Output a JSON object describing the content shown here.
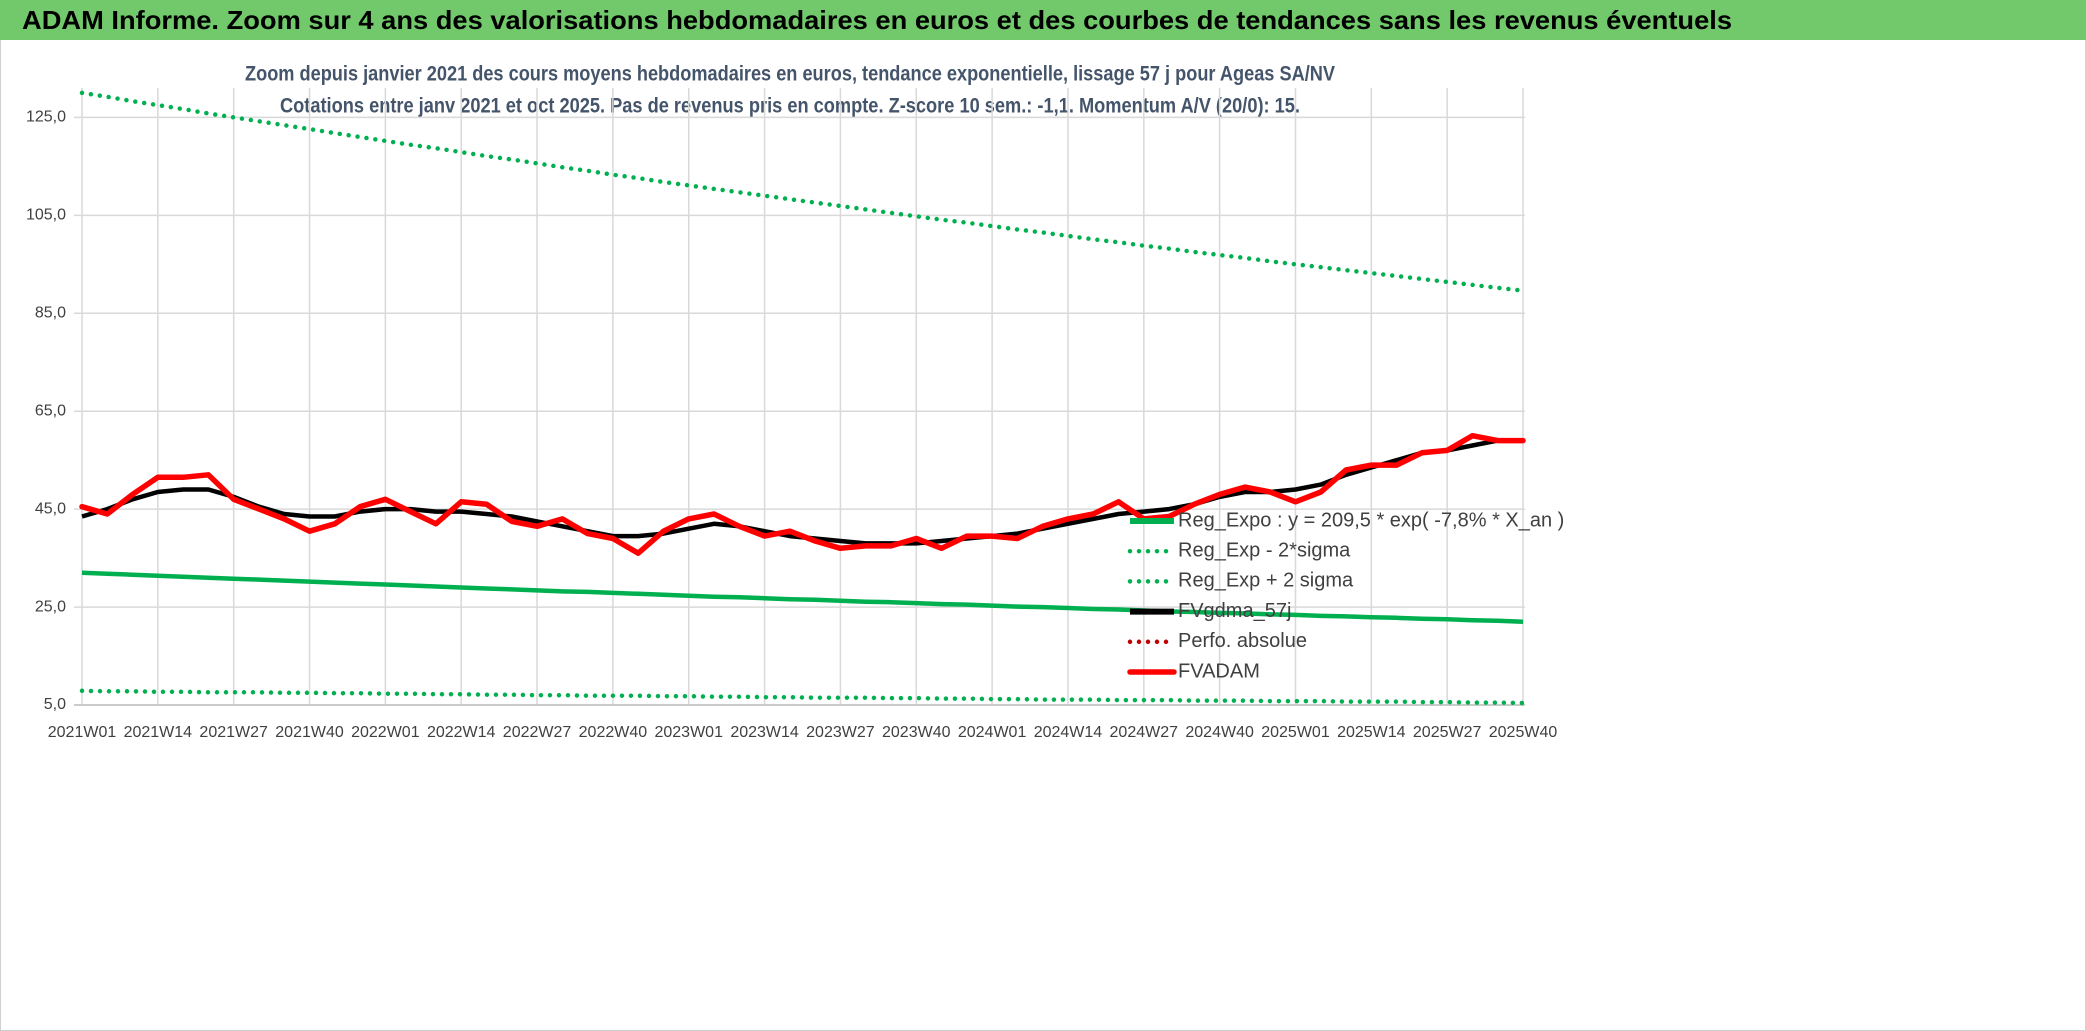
{
  "header": {
    "title": "ADAM Informe. Zoom sur 4 ans des valorisations hebdomadaires en euros et des courbes de tendances sans les revenus éventuels"
  },
  "chart_data": {
    "type": "line",
    "title": "Zoom depuis janvier 2021 des cours moyens hebdomadaires en euros, tendance exponentielle, lissage 57 j pour Ageas SA/NV",
    "subtitle": "Cotations entre janv 2021 et oct 2025. Pas de revenus pris en compte. Z-score 10 sem.: -1,1. Momentum A/V (20/0): 15.",
    "categories": [
      "2021W01",
      null,
      null,
      "2021W14",
      null,
      null,
      "2021W27",
      null,
      null,
      "2021W40",
      null,
      null,
      "2022W01",
      null,
      null,
      "2022W14",
      null,
      null,
      "2022W27",
      null,
      null,
      "2022W40",
      null,
      null,
      "2023W01",
      null,
      null,
      "2023W14",
      null,
      null,
      "2023W27",
      null,
      null,
      "2023W40",
      null,
      null,
      "2024W01",
      null,
      null,
      "2024W14",
      null,
      null,
      "2024W27",
      null,
      null,
      "2024W40",
      null,
      null,
      "2025W01",
      null,
      null,
      "2025W14",
      null,
      null,
      "2025W27",
      null,
      null,
      "2025W40"
    ],
    "ylim": [
      5,
      131
    ],
    "yticks": [
      {
        "value": 5,
        "label": "5,0"
      },
      {
        "value": 25,
        "label": "25,0"
      },
      {
        "value": 45,
        "label": "45,0"
      },
      {
        "value": 65,
        "label": "65,0"
      },
      {
        "value": 85,
        "label": "85,0"
      },
      {
        "value": 105,
        "label": "105,0"
      },
      {
        "value": 125,
        "label": "125,0"
      }
    ],
    "grid": true,
    "series": [
      {
        "name": "Reg_Expo : y = 209,5 * exp( -7,8% *  X_an )",
        "color": "#00b050",
        "style": "solid",
        "values": [
          32.0,
          31.8,
          31.6,
          31.4,
          31.2,
          31.0,
          30.8,
          30.6,
          30.4,
          30.2,
          30.0,
          29.8,
          29.6,
          29.4,
          29.2,
          29.0,
          28.8,
          28.6,
          28.4,
          28.2,
          28.1,
          27.9,
          27.7,
          27.5,
          27.3,
          27.1,
          27.0,
          26.8,
          26.6,
          26.5,
          26.3,
          26.1,
          26.0,
          25.8,
          25.6,
          25.5,
          25.3,
          25.1,
          25.0,
          24.8,
          24.6,
          24.5,
          24.3,
          24.1,
          24.0,
          23.8,
          23.7,
          23.5,
          23.4,
          23.2,
          23.1,
          22.9,
          22.8,
          22.6,
          22.5,
          22.3,
          22.2,
          22.0
        ]
      },
      {
        "name": "Reg_Exp - 2*sigma",
        "color": "#00b050",
        "style": "dotted",
        "values": [
          7.9,
          7.8,
          7.8,
          7.7,
          7.7,
          7.6,
          7.6,
          7.6,
          7.5,
          7.5,
          7.4,
          7.4,
          7.3,
          7.3,
          7.2,
          7.2,
          7.1,
          7.1,
          7.0,
          7.0,
          6.9,
          6.9,
          6.9,
          6.8,
          6.8,
          6.7,
          6.7,
          6.6,
          6.6,
          6.5,
          6.5,
          6.5,
          6.4,
          6.4,
          6.3,
          6.3,
          6.2,
          6.2,
          6.1,
          6.1,
          6.1,
          6.0,
          6.0,
          6.0,
          5.9,
          5.9,
          5.9,
          5.8,
          5.8,
          5.8,
          5.7,
          5.7,
          5.7,
          5.6,
          5.6,
          5.5,
          5.5,
          5.4
        ]
      },
      {
        "name": "Reg_Exp + 2 sigma",
        "color": "#00b050",
        "style": "dotted",
        "values": [
          130,
          129.2,
          128.3,
          127.5,
          126.7,
          125.8,
          125.0,
          124.2,
          123.4,
          122.6,
          121.8,
          121.0,
          120.2,
          119.4,
          118.7,
          117.9,
          117.1,
          116.4,
          115.6,
          114.8,
          114.1,
          113.3,
          112.6,
          111.8,
          111.1,
          110.4,
          109.7,
          109.0,
          108.3,
          107.6,
          106.9,
          106.2,
          105.5,
          104.8,
          104.1,
          103.5,
          102.8,
          102.1,
          101.5,
          100.8,
          100.1,
          99.5,
          98.8,
          98.2,
          97.5,
          96.9,
          96.3,
          95.6,
          95.0,
          94.4,
          93.8,
          93.2,
          92.6,
          92.0,
          91.4,
          90.8,
          90.2,
          89.6
        ]
      },
      {
        "name": "FVgdma_57j",
        "color": "#000000",
        "style": "solid",
        "values": [
          43.5,
          45,
          47,
          48.5,
          49,
          49,
          47.5,
          45.5,
          44,
          43.5,
          43.5,
          44.5,
          45,
          45,
          44.5,
          44.5,
          44,
          43.5,
          42.5,
          41.5,
          40.5,
          39.5,
          39.5,
          40,
          41,
          42,
          41.5,
          40.5,
          39.5,
          39,
          38.5,
          38,
          38,
          38,
          38.5,
          39,
          39.5,
          40,
          41,
          42,
          43,
          44,
          44.5,
          45,
          46,
          47.5,
          48.5,
          48.5,
          49,
          50,
          52,
          53.5,
          55,
          56.5,
          57,
          58,
          59,
          59
        ]
      },
      {
        "name": "Perfo. absolue",
        "color": "#c00000",
        "style": "dotted",
        "values": [
          null,
          null,
          null,
          null,
          null,
          null,
          null,
          null,
          null,
          null,
          null,
          null,
          null,
          null,
          null,
          null,
          null,
          null,
          null,
          null,
          null,
          null,
          null,
          null,
          null,
          null,
          null,
          null,
          null,
          null,
          null,
          null,
          null,
          null,
          null,
          null,
          null,
          null,
          null,
          null,
          null,
          null,
          null,
          null,
          null,
          null,
          null,
          null,
          null,
          null,
          null,
          null,
          null,
          null,
          null,
          null,
          null,
          null
        ]
      },
      {
        "name": "FVADAM",
        "color": "#ff0000",
        "style": "thick",
        "values": [
          45.5,
          44,
          48,
          51.5,
          51.5,
          52,
          47,
          45,
          43,
          40.5,
          42,
          45.5,
          47,
          44.5,
          42,
          46.5,
          46,
          42.5,
          41.5,
          43,
          40,
          39,
          36,
          40.5,
          43,
          44,
          41.5,
          39.5,
          40.5,
          38.5,
          37,
          37.5,
          37.5,
          39,
          37,
          39.5,
          39.5,
          39,
          41.5,
          43,
          44,
          46.5,
          43,
          43.5,
          46,
          48,
          49.5,
          48.5,
          46.5,
          48.5,
          53,
          54,
          54,
          56.5,
          57,
          60,
          59,
          59
        ]
      }
    ]
  }
}
